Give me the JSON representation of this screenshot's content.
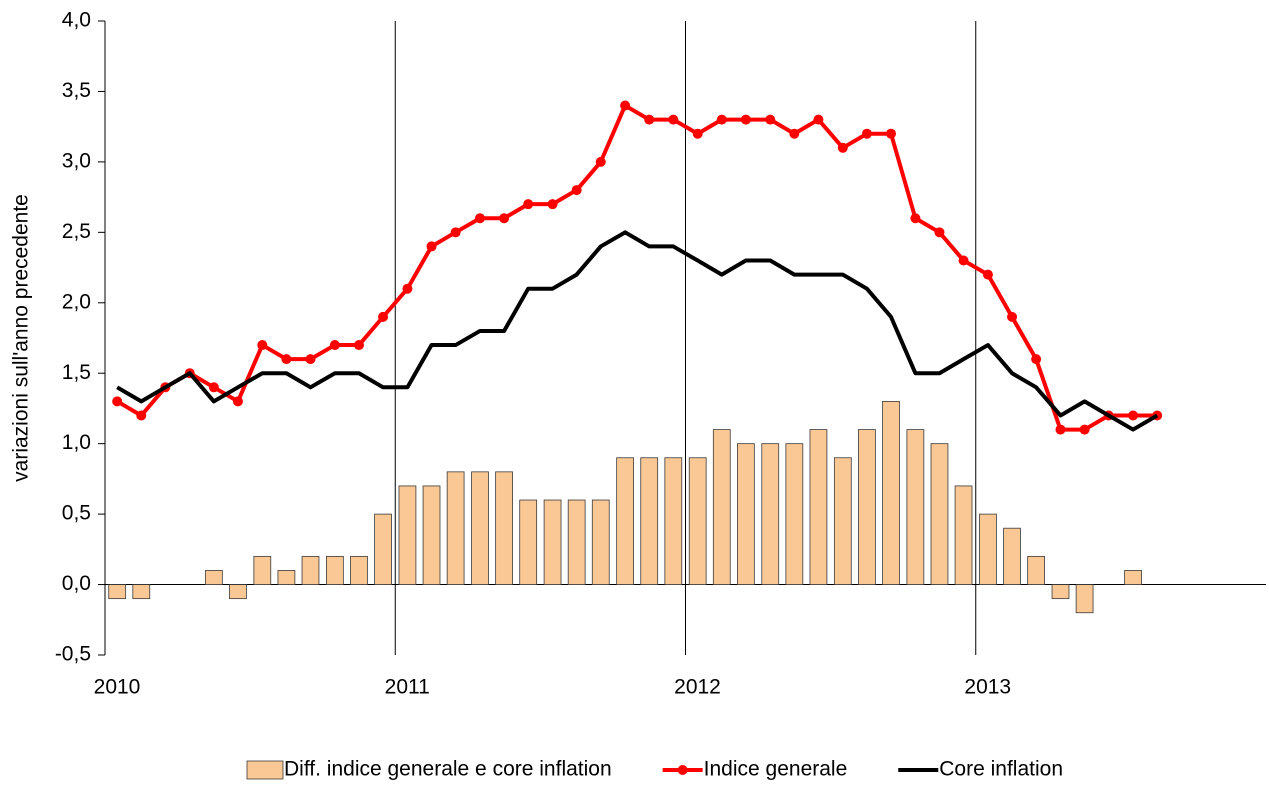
{
  "chart_data": {
    "type": "bar",
    "y_label": "variazioni sull'anno precedente",
    "x": [
      2010.042,
      2010.125,
      2010.208,
      2010.292,
      2010.375,
      2010.458,
      2010.542,
      2010.625,
      2010.708,
      2010.792,
      2010.875,
      2010.958,
      2011.042,
      2011.125,
      2011.208,
      2011.292,
      2011.375,
      2011.458,
      2011.542,
      2011.625,
      2011.708,
      2011.792,
      2011.875,
      2011.958,
      2012.042,
      2012.125,
      2012.208,
      2012.292,
      2012.375,
      2012.458,
      2012.542,
      2012.625,
      2012.708,
      2012.792,
      2012.875,
      2012.958,
      2013.042,
      2013.125,
      2013.208,
      2013.292,
      2013.375,
      2013.458,
      2013.542,
      2013.625
    ],
    "series": [
      {
        "name": "Diff. indice generale e core inflation",
        "type": "bar",
        "color": "#fac895",
        "values": [
          -0.1,
          -0.1,
          0,
          0,
          0.1,
          -0.1,
          0.2,
          0.1,
          0.2,
          0.2,
          0.2,
          0.5,
          0.7,
          0.7,
          0.8,
          0.8,
          0.8,
          0.6,
          0.6,
          0.6,
          0.6,
          0.9,
          0.9,
          0.9,
          0.9,
          1.1,
          1.0,
          1.0,
          1.0,
          1.1,
          0.9,
          1.1,
          1.3,
          1.1,
          1.0,
          0.7,
          0.5,
          0.4,
          0.2,
          -0.1,
          -0.2,
          0,
          0.1,
          0
        ]
      },
      {
        "name": "Indice generale",
        "type": "line",
        "color": "#ff0000",
        "markers": true,
        "values": [
          1.3,
          1.2,
          1.4,
          1.5,
          1.4,
          1.3,
          1.7,
          1.6,
          1.6,
          1.7,
          1.7,
          1.9,
          2.1,
          2.4,
          2.5,
          2.6,
          2.6,
          2.7,
          2.7,
          2.8,
          3.0,
          3.4,
          3.3,
          3.3,
          3.2,
          3.3,
          3.3,
          3.3,
          3.2,
          3.3,
          3.1,
          3.2,
          3.2,
          2.6,
          2.5,
          2.3,
          2.2,
          1.9,
          1.6,
          1.1,
          1.1,
          1.2,
          1.2,
          1.2
        ]
      },
      {
        "name": "Core inflation",
        "type": "line",
        "color": "#000000",
        "markers": false,
        "values": [
          1.4,
          1.3,
          1.4,
          1.5,
          1.3,
          1.4,
          1.5,
          1.5,
          1.4,
          1.5,
          1.5,
          1.4,
          1.4,
          1.7,
          1.7,
          1.8,
          1.8,
          2.1,
          2.1,
          2.2,
          2.4,
          2.5,
          2.4,
          2.4,
          2.3,
          2.2,
          2.3,
          2.3,
          2.2,
          2.2,
          2.2,
          2.1,
          1.9,
          1.5,
          1.5,
          1.6,
          1.7,
          1.5,
          1.4,
          1.2,
          1.3,
          1.2,
          1.1,
          1.2
        ]
      }
    ],
    "xlim": [
      2010,
      2014
    ],
    "xticks": [
      2010,
      2011,
      2012,
      2013
    ],
    "ylim": [
      -0.5,
      4.0
    ],
    "yticks": [
      {
        "value": -0.5,
        "label": "-0,5"
      },
      {
        "value": 0,
        "label": "0,0"
      },
      {
        "value": 0.5,
        "label": "0,5"
      },
      {
        "value": 1.0,
        "label": "1,0"
      },
      {
        "value": 1.5,
        "label": "1,5"
      },
      {
        "value": 2.0,
        "label": "2,0"
      },
      {
        "value": 2.5,
        "label": "2,5"
      },
      {
        "value": 3.0,
        "label": "3,0"
      },
      {
        "value": 3.5,
        "label": "3,5"
      },
      {
        "value": 4.0,
        "label": "4,0"
      }
    ],
    "grid_x": true,
    "legend": "bottom"
  }
}
